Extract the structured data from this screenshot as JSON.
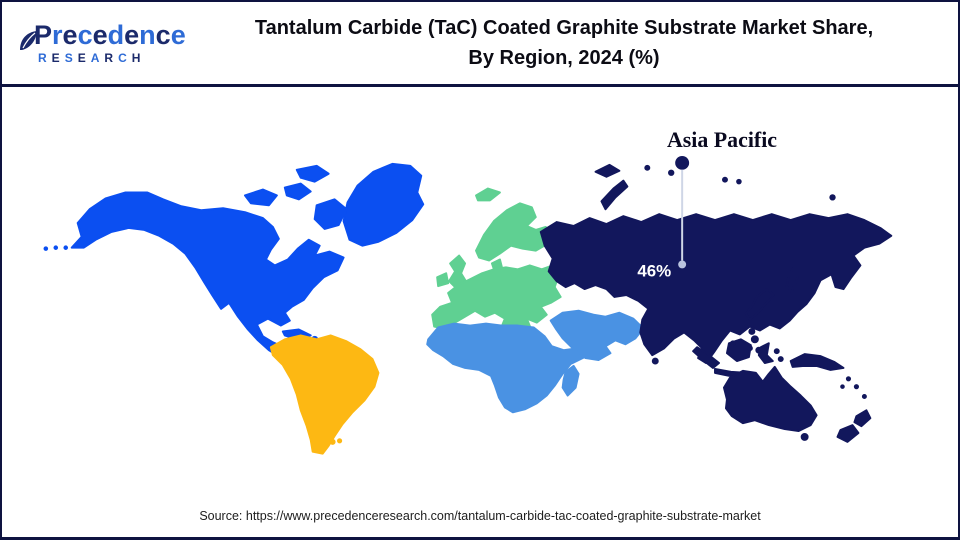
{
  "header": {
    "logo": {
      "brand": "Precedence",
      "sub": "RESEARCH",
      "navy": "#1b2a6b",
      "blue": "#2e6bd6"
    },
    "title_line1": "Tantalum Carbide (TaC) Coated Graphite Substrate Market Share,",
    "title_line2": "By Region, 2024 (%)"
  },
  "chart_data": {
    "type": "map",
    "title": "Tantalum Carbide (TaC) Coated Graphite Substrate Market Share, By Region, 2024 (%)",
    "legend_position": "none",
    "ocean_color": "#ffffff",
    "annotated_region": {
      "name": "Asia Pacific",
      "share_label": "46%",
      "share_pct": 46
    },
    "regions": [
      {
        "name": "North America",
        "color": "#0b4ff1"
      },
      {
        "name": "South America",
        "color": "#fdb813"
      },
      {
        "name": "Europe",
        "color": "#5fd092"
      },
      {
        "name": "Middle East & Africa",
        "color": "#4a92e3"
      },
      {
        "name": "Asia Pacific",
        "color": "#12175c",
        "share_pct": 46
      }
    ],
    "annotation_line_color": "#cfd6e6",
    "annotation_end_dot_color": "#b9c3de",
    "label_color": "#0a0a20",
    "value_text_color": "#ffffff"
  },
  "footer": {
    "source": "Source: https://www.precedenceresearch.com/tantalum-carbide-tac-coated-graphite-substrate-market"
  }
}
